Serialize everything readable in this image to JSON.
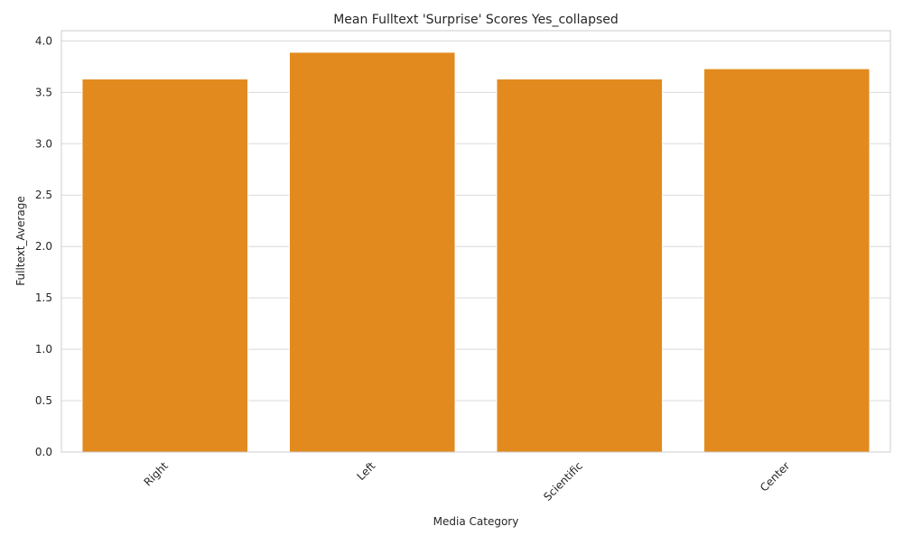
{
  "chart_data": {
    "type": "bar",
    "title": "Mean Fulltext 'Surprise' Scores Yes_collapsed",
    "xlabel": "Media Category",
    "ylabel": "Fulltext_Average",
    "categories": [
      "Right",
      "Left",
      "Scientific",
      "Center"
    ],
    "values": [
      3.63,
      3.89,
      3.63,
      3.73
    ],
    "ylim": [
      0,
      4.1
    ],
    "yticks": [
      0.0,
      0.5,
      1.0,
      1.5,
      2.0,
      2.5,
      3.0,
      3.5,
      4.0
    ],
    "ytick_labels": [
      "0.0",
      "0.5",
      "1.0",
      "1.5",
      "2.0",
      "2.5",
      "3.0",
      "3.5",
      "4.0"
    ],
    "grid": "horizontal",
    "legend": "none",
    "colors": {
      "bar": "#e28a1e",
      "grid": "#d9d9d9",
      "spine": "#cccccc",
      "text": "#262626"
    }
  }
}
